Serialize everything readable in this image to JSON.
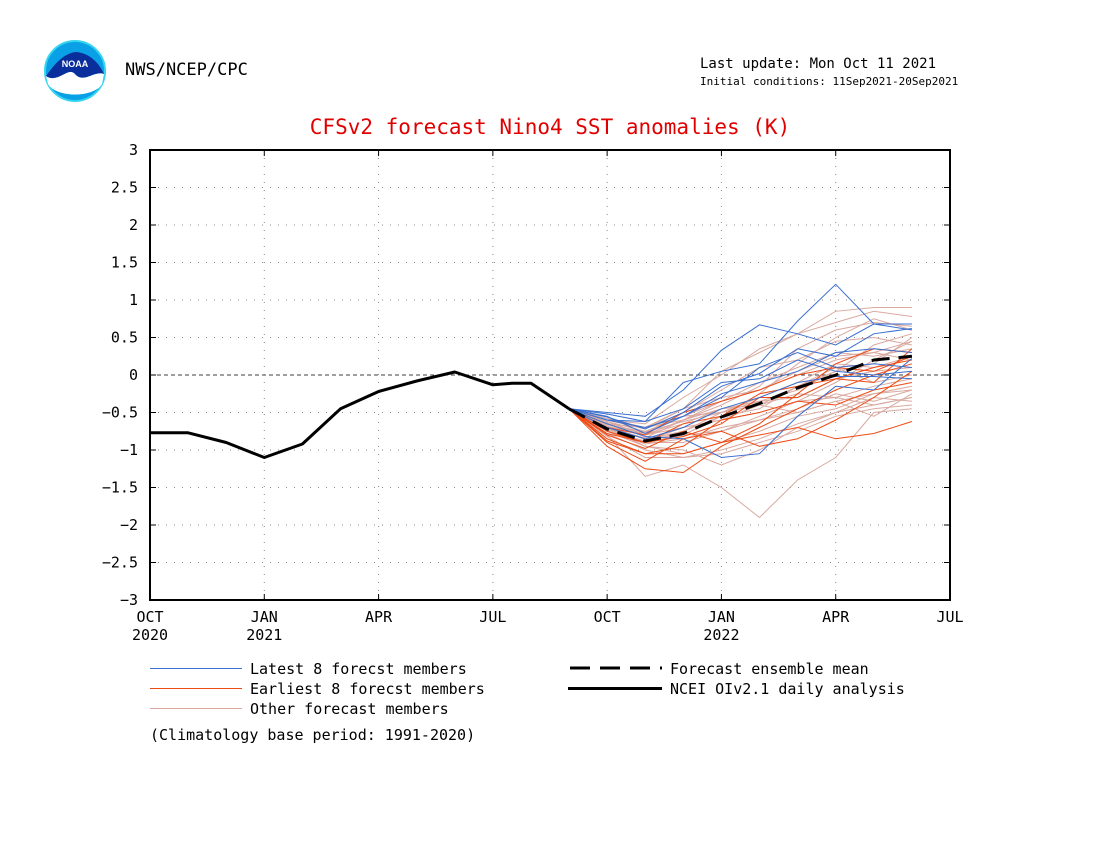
{
  "header": {
    "agency": "NWS/NCEP/CPC",
    "logo_text": "NOAA",
    "last_update": "Last update: Mon Oct 11 2021",
    "initial_conditions": "Initial conditions: 11Sep2021-20Sep2021"
  },
  "colors": {
    "title": "#e00000",
    "latest": "#3a6fd0",
    "earliest": "#ee4a14",
    "other": "#d9a9a0",
    "analysis": "#000000"
  },
  "legend": {
    "latest": "Latest 8 forecst members",
    "earliest": "Earliest 8 forecst members",
    "other": "Other forecast members",
    "mean": "Forecast ensemble mean",
    "analysis": "NCEI OIv2.1 daily analysis"
  },
  "footnote": "(Climatology base period: 1991-2020)",
  "chart_data": {
    "type": "line",
    "title": "CFSv2 forecast Nino4 SST anomalies (K)",
    "xlabel": "",
    "ylabel": "",
    "ylim": [
      -3,
      3
    ],
    "xlim_months": [
      0,
      21
    ],
    "grid": true,
    "zero_line": true,
    "y_ticks": [
      "3",
      "2.5",
      "2",
      "1.5",
      "1",
      "0.5",
      "0",
      "-0.5",
      "-1",
      "-1.5",
      "-2",
      "-2.5",
      "-3"
    ],
    "x_ticks": [
      {
        "label": "OCT",
        "year": "2020",
        "m": 0
      },
      {
        "label": "JAN",
        "year": "2021",
        "m": 3
      },
      {
        "label": "APR",
        "year": "",
        "m": 6
      },
      {
        "label": "JUL",
        "year": "",
        "m": 9
      },
      {
        "label": "OCT",
        "year": "",
        "m": 12
      },
      {
        "label": "JAN",
        "year": "2022",
        "m": 15
      },
      {
        "label": "APR",
        "year": "",
        "m": 18
      },
      {
        "label": "JUL",
        "year": "",
        "m": 21
      }
    ],
    "analysis": {
      "name": "NCEI OIv2.1 daily analysis",
      "x": [
        0,
        0.5,
        1,
        2,
        3,
        4,
        5,
        6,
        7,
        8,
        9,
        9.5,
        10,
        11
      ],
      "y": [
        -0.77,
        -0.77,
        -0.77,
        -0.9,
        -1.1,
        -0.92,
        -0.45,
        -0.22,
        -0.08,
        0.04,
        -0.13,
        -0.11,
        -0.11,
        -0.45
      ]
    },
    "ensemble_mean": {
      "name": "Forecast ensemble mean",
      "x": [
        11,
        12,
        13,
        14,
        15,
        16,
        17,
        18,
        19,
        20
      ],
      "y": [
        -0.45,
        -0.72,
        -0.88,
        -0.78,
        -0.56,
        -0.38,
        -0.17,
        0.0,
        0.2,
        0.25
      ]
    },
    "members_x": [
      11,
      12,
      13,
      14,
      15,
      16,
      17,
      18,
      19,
      20
    ],
    "latest_members": [
      [
        -0.45,
        -0.5,
        -0.55,
        -0.2,
        0.33,
        0.67,
        0.55,
        0.4,
        0.68,
        0.68
      ],
      [
        -0.45,
        -0.52,
        -0.62,
        -0.1,
        0.05,
        0.15,
        0.72,
        1.21,
        0.68,
        0.6
      ],
      [
        -0.45,
        -0.56,
        -0.72,
        -0.5,
        -0.15,
        0.02,
        0.35,
        0.25,
        0.55,
        0.62
      ],
      [
        -0.45,
        -0.65,
        -0.82,
        -0.85,
        -1.1,
        -1.05,
        -0.55,
        -0.15,
        -0.2,
        0.22
      ],
      [
        -0.45,
        -0.6,
        -0.7,
        -0.55,
        -0.25,
        -0.1,
        0.05,
        0.3,
        0.35,
        0.3
      ],
      [
        -0.45,
        -0.7,
        -0.85,
        -0.7,
        -0.45,
        -0.3,
        -0.1,
        -0.02,
        -0.02,
        -0.05
      ],
      [
        -0.45,
        -0.55,
        -0.78,
        -0.55,
        -0.3,
        0.1,
        0.3,
        0.1,
        0.15,
        0.1
      ],
      [
        -0.45,
        -0.6,
        -0.62,
        -0.45,
        -0.1,
        -0.05,
        0.2,
        0.05,
        0.0,
        0.05
      ]
    ],
    "earliest_members": [
      [
        -0.45,
        -0.85,
        -1.05,
        -1.05,
        -0.9,
        -0.8,
        -0.7,
        -0.85,
        -0.78,
        -0.62
      ],
      [
        -0.45,
        -0.95,
        -1.25,
        -1.3,
        -0.95,
        -0.7,
        -0.45,
        -0.2,
        0.0,
        0.15
      ],
      [
        -0.45,
        -0.9,
        -1.15,
        -0.85,
        -0.75,
        -0.95,
        -0.85,
        -0.6,
        -0.3,
        0.05
      ],
      [
        -0.45,
        -0.75,
        -0.9,
        -0.65,
        -0.55,
        -0.25,
        -0.15,
        -0.05,
        -0.1,
        0.35
      ],
      [
        -0.45,
        -0.8,
        -0.98,
        -0.75,
        -0.9,
        -0.65,
        -0.25,
        0.15,
        0.35,
        0.3
      ],
      [
        -0.45,
        -0.7,
        -0.8,
        -0.5,
        -0.35,
        -0.2,
        0.0,
        0.1,
        0.05,
        0.25
      ],
      [
        -0.45,
        -0.88,
        -1.05,
        -0.95,
        -0.6,
        -0.5,
        -0.35,
        -0.4,
        -0.2,
        -0.1
      ],
      [
        -0.45,
        -0.78,
        -0.9,
        -0.82,
        -0.65,
        -0.3,
        -0.3,
        -0.05,
        0.1,
        0.2
      ]
    ],
    "other_members": [
      [
        -0.45,
        -0.8,
        -1.35,
        -1.2,
        -1.5,
        -1.9,
        -1.4,
        -1.1,
        -0.5,
        -0.45
      ],
      [
        -0.45,
        -0.75,
        -0.95,
        -1.0,
        -1.2,
        -1.0,
        -0.7,
        -0.5,
        -0.4,
        -0.3
      ],
      [
        -0.45,
        -0.6,
        -0.65,
        -0.3,
        0.0,
        0.35,
        0.55,
        0.85,
        0.9,
        0.9
      ],
      [
        -0.45,
        -0.65,
        -0.7,
        -0.45,
        0.05,
        0.3,
        0.55,
        0.7,
        0.85,
        0.78
      ],
      [
        -0.45,
        -0.7,
        -0.85,
        -0.8,
        -0.55,
        -0.25,
        0.15,
        0.5,
        0.75,
        0.6
      ],
      [
        -0.45,
        -0.72,
        -0.9,
        -0.9,
        -0.75,
        -0.55,
        -0.35,
        -0.1,
        0.2,
        0.45
      ],
      [
        -0.45,
        -0.68,
        -0.8,
        -0.65,
        -0.45,
        -0.4,
        -0.25,
        -0.3,
        -0.4,
        -0.3
      ],
      [
        -0.45,
        -0.62,
        -0.75,
        -0.55,
        -0.35,
        -0.1,
        0.1,
        0.3,
        0.25,
        0.35
      ],
      [
        -0.45,
        -0.7,
        -0.95,
        -1.05,
        -0.9,
        -0.75,
        -0.55,
        -0.45,
        -0.25,
        -0.2
      ],
      [
        -0.45,
        -0.58,
        -0.7,
        -0.6,
        -0.45,
        -0.35,
        -0.2,
        0.05,
        0.4,
        0.55
      ],
      [
        -0.45,
        -0.75,
        -0.88,
        -0.7,
        -0.6,
        -0.4,
        -0.5,
        -0.35,
        -0.55,
        -0.25
      ],
      [
        -0.45,
        -0.66,
        -0.78,
        -0.5,
        -0.2,
        0.1,
        0.2,
        0.45,
        0.5,
        0.4
      ],
      [
        -0.45,
        -0.82,
        -1.1,
        -1.1,
        -1.0,
        -0.85,
        -0.65,
        -0.5,
        -0.3,
        -0.35
      ],
      [
        -0.45,
        -0.6,
        -0.72,
        -0.45,
        -0.3,
        -0.2,
        0.0,
        0.2,
        0.3,
        0.2
      ],
      [
        -0.45,
        -0.7,
        -0.9,
        -0.75,
        -0.55,
        -0.45,
        -0.15,
        0.1,
        -0.1,
        0.0
      ],
      [
        -0.45,
        -0.64,
        -0.8,
        -0.6,
        -0.4,
        -0.15,
        0.35,
        0.6,
        0.7,
        0.65
      ],
      [
        -0.45,
        -0.74,
        -0.92,
        -0.85,
        -0.7,
        -0.6,
        -0.45,
        -0.25,
        -0.35,
        -0.2
      ],
      [
        -0.45,
        -0.6,
        -0.7,
        -0.55,
        -0.5,
        -0.3,
        -0.1,
        0.15,
        0.1,
        0.25
      ],
      [
        -0.45,
        -0.68,
        -0.86,
        -0.75,
        -0.5,
        -0.35,
        -0.3,
        -0.05,
        0.05,
        0.1
      ],
      [
        -0.45,
        -0.78,
        -1.0,
        -1.1,
        -1.05,
        -0.9,
        -0.75,
        -0.55,
        -0.45,
        -0.4
      ],
      [
        -0.45,
        -0.62,
        -0.8,
        -0.7,
        -0.6,
        -0.5,
        -0.35,
        -0.3,
        -0.15,
        -0.05
      ],
      [
        -0.45,
        -0.7,
        -0.84,
        -0.6,
        -0.35,
        -0.2,
        0.05,
        0.25,
        0.3,
        0.45
      ],
      [
        -0.45,
        -0.66,
        -0.76,
        -0.62,
        -0.5,
        -0.4,
        -0.15,
        0.05,
        0.15,
        0.5
      ],
      [
        -0.45,
        -0.74,
        -0.9,
        -0.8,
        -0.75,
        -0.6,
        -0.5,
        -0.35,
        -0.25,
        -0.15
      ]
    ]
  }
}
